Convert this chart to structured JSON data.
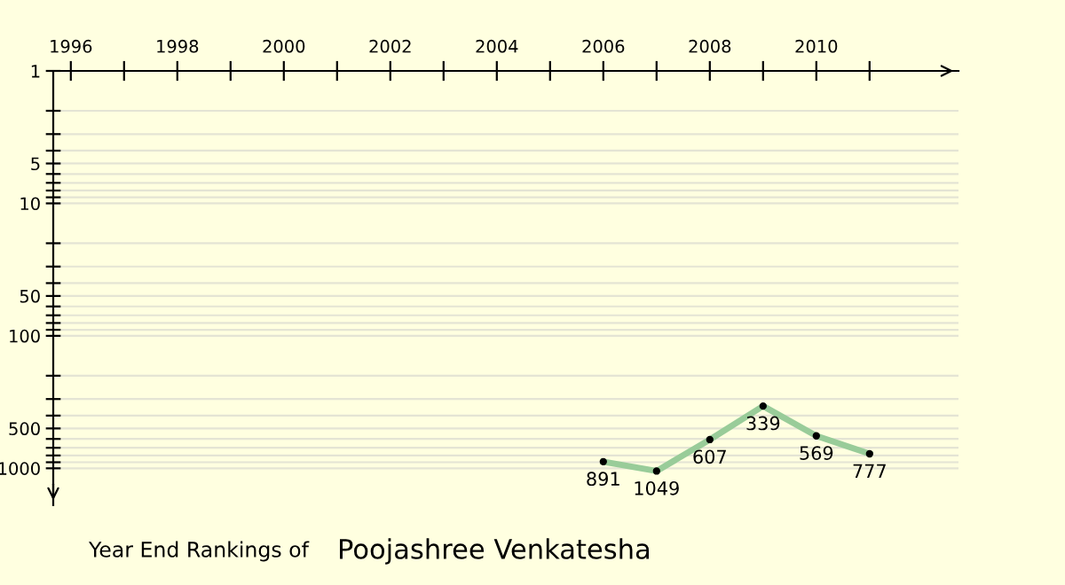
{
  "chart_data": {
    "type": "line",
    "title": "Year End Rankings of",
    "subtitle": "Poojashree Venkatesha",
    "x": [
      2006,
      2007,
      2008,
      2009,
      2010,
      2011
    ],
    "series": [
      {
        "color": "#99cc99",
        "values": [
          891,
          1049,
          607,
          339,
          569,
          777
        ]
      }
    ],
    "data_labels": true,
    "marker": "circle",
    "line_style": "solid",
    "log": true,
    "grid": "y",
    "xlim": [
      1995.67,
      2012.67
    ],
    "xticks": [
      1996,
      {
        "value": 1997,
        "label": null
      },
      1998,
      {
        "value": 1999,
        "label": null
      },
      2000,
      {
        "value": 2001,
        "label": null
      },
      2002,
      {
        "value": 2003,
        "label": null
      },
      2004,
      {
        "value": 2005,
        "label": null
      },
      2006,
      {
        "value": 2007,
        "label": null
      },
      2008,
      {
        "value": 2009,
        "label": null
      },
      2010,
      {
        "value": 2011,
        "label": null
      }
    ],
    "ylim": [
      1900,
      1
    ],
    "yticks": [
      1,
      {
        "value": 2,
        "label": null
      },
      {
        "value": 3,
        "label": null
      },
      {
        "value": 4,
        "label": null
      },
      5,
      {
        "value": 6,
        "label": null
      },
      {
        "value": 7,
        "label": null
      },
      {
        "value": 8,
        "label": null
      },
      {
        "value": 9,
        "label": null
      },
      10,
      {
        "value": 20,
        "label": null
      },
      {
        "value": 30,
        "label": null
      },
      {
        "value": 40,
        "label": null
      },
      50,
      {
        "value": 60,
        "label": null
      },
      {
        "value": 70,
        "label": null
      },
      {
        "value": 80,
        "label": null
      },
      {
        "value": 90,
        "label": null
      },
      100,
      {
        "value": 200,
        "label": null
      },
      {
        "value": 300,
        "label": null
      },
      {
        "value": 400,
        "label": null
      },
      500,
      {
        "value": 600,
        "label": null
      },
      {
        "value": 700,
        "label": null
      },
      {
        "value": 800,
        "label": null
      },
      {
        "value": 900,
        "label": null
      },
      1000
    ]
  }
}
